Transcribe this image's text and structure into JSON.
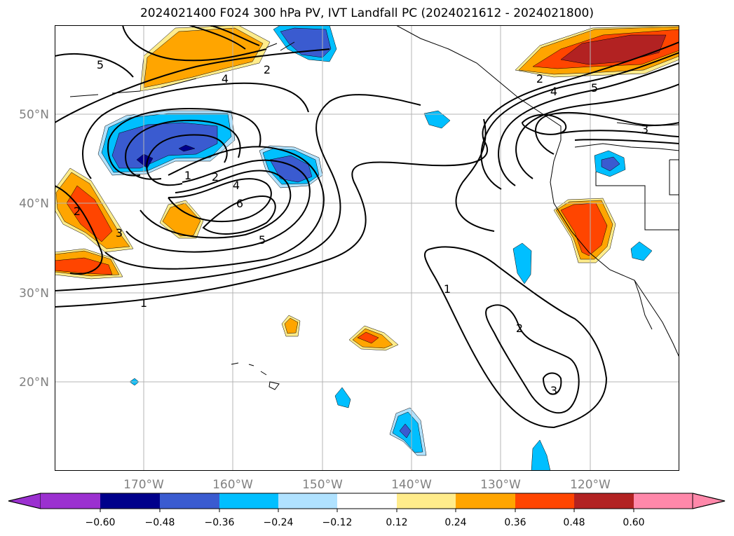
{
  "title": "2024021400 F024 300 hPa PV, IVT Landfall PC (2024021612 - 2024021800)",
  "map": {
    "lat_labels": [
      "50°N",
      "40°N",
      "30°N",
      "20°N"
    ],
    "lon_labels": [
      "170°W",
      "160°W",
      "150°W",
      "140°W",
      "130°W",
      "120°W"
    ],
    "contour_labels": [
      "5",
      "2",
      "4",
      "2",
      "4",
      "5",
      "3",
      "1",
      "2",
      "4",
      "6",
      "5",
      "2",
      "3",
      "1",
      "1",
      "2",
      "3"
    ]
  },
  "colorbar": {
    "ticks": [
      "−0.60",
      "−0.48",
      "−0.36",
      "−0.24",
      "−0.12",
      "0.12",
      "0.24",
      "0.36",
      "0.48",
      "0.60"
    ],
    "colors": [
      "#9b30d0",
      "#00008b",
      "#3a5bd0",
      "#00bfff",
      "#b0e2ff",
      "#ffffff",
      "#ffec8b",
      "#ffa500",
      "#ff4500",
      "#b22222",
      "#ff88aa"
    ]
  }
}
